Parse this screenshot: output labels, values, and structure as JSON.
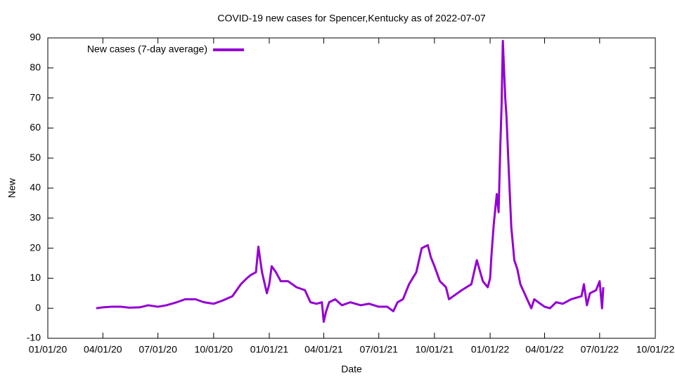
{
  "chart_data": {
    "type": "line",
    "title": "COVID-19 new cases for Spencer,Kentucky as of 2022-07-07",
    "x_label": "Date",
    "y_label": "New",
    "x": [
      "2020-03-21",
      "2020-04-01",
      "2020-04-15",
      "2020-05-01",
      "2020-05-15",
      "2020-06-01",
      "2020-06-15",
      "2020-07-01",
      "2020-07-15",
      "2020-08-01",
      "2020-08-15",
      "2020-09-01",
      "2020-09-15",
      "2020-10-01",
      "2020-10-15",
      "2020-11-01",
      "2020-11-15",
      "2020-11-25",
      "2020-12-01",
      "2020-12-10",
      "2020-12-14",
      "2020-12-20",
      "2020-12-28",
      "2021-01-01",
      "2021-01-05",
      "2021-01-12",
      "2021-01-20",
      "2021-02-01",
      "2021-02-15",
      "2021-03-01",
      "2021-03-10",
      "2021-03-20",
      "2021-03-29",
      "2021-04-01",
      "2021-04-05",
      "2021-04-10",
      "2021-04-20",
      "2021-05-01",
      "2021-05-15",
      "2021-06-01",
      "2021-06-15",
      "2021-07-01",
      "2021-07-15",
      "2021-07-25",
      "2021-08-01",
      "2021-08-10",
      "2021-08-20",
      "2021-09-01",
      "2021-09-10",
      "2021-09-20",
      "2021-09-25",
      "2021-10-01",
      "2021-10-10",
      "2021-10-20",
      "2021-10-25",
      "2021-11-01",
      "2021-11-15",
      "2021-12-01",
      "2021-12-10",
      "2021-12-20",
      "2021-12-28",
      "2022-01-01",
      "2022-01-03",
      "2022-01-07",
      "2022-01-12",
      "2022-01-15",
      "2022-01-18",
      "2022-01-20",
      "2022-01-22",
      "2022-01-26",
      "2022-01-28",
      "2022-02-01",
      "2022-02-05",
      "2022-02-10",
      "2022-02-15",
      "2022-02-20",
      "2022-03-01",
      "2022-03-10",
      "2022-03-15",
      "2022-03-25",
      "2022-04-01",
      "2022-04-10",
      "2022-04-20",
      "2022-05-01",
      "2022-05-15",
      "2022-06-01",
      "2022-06-05",
      "2022-06-10",
      "2022-06-15",
      "2022-06-25",
      "2022-07-01",
      "2022-07-05",
      "2022-07-07"
    ],
    "series": [
      {
        "name": "New cases (7-day average)",
        "color": "#9400d3",
        "values": [
          0,
          0.3,
          0.5,
          0.5,
          0.2,
          0.3,
          1,
          0.5,
          1,
          2,
          3,
          3,
          2,
          1.5,
          2.5,
          4,
          8,
          10,
          11,
          12,
          20.5,
          12,
          5,
          8,
          14,
          12,
          9,
          9,
          7,
          6,
          2,
          1.5,
          2,
          -4.5,
          -1,
          2,
          3,
          1,
          2,
          1,
          1.5,
          0.5,
          0.5,
          -1,
          2,
          3,
          8,
          12,
          20,
          21,
          17,
          14,
          9,
          7,
          3,
          4,
          6,
          8,
          16,
          9,
          7,
          10,
          17,
          28,
          38,
          32,
          55,
          68,
          89,
          70,
          64,
          45,
          27,
          16,
          13,
          8,
          4,
          0,
          3,
          1.5,
          0.5,
          0,
          2,
          1.5,
          3,
          4,
          8,
          1,
          5,
          6,
          9,
          0,
          7
        ]
      }
    ],
    "xlim": [
      "2020-01-01",
      "2022-10-01"
    ],
    "xticks": [
      {
        "value": "2020-01-01",
        "label": "01/01/20"
      },
      {
        "value": "2020-04-01",
        "label": "04/01/20"
      },
      {
        "value": "2020-07-01",
        "label": "07/01/20"
      },
      {
        "value": "2020-10-01",
        "label": "10/01/20"
      },
      {
        "value": "2021-01-01",
        "label": "01/01/21"
      },
      {
        "value": "2021-04-01",
        "label": "04/01/21"
      },
      {
        "value": "2021-07-01",
        "label": "07/01/21"
      },
      {
        "value": "2021-10-01",
        "label": "10/01/21"
      },
      {
        "value": "2022-01-01",
        "label": "01/01/22"
      },
      {
        "value": "2022-04-01",
        "label": "04/01/22"
      },
      {
        "value": "2022-07-01",
        "label": "07/01/22"
      },
      {
        "value": "2022-10-01",
        "label": "10/01/22"
      }
    ],
    "ylim": [
      -10,
      90
    ],
    "yticks": [
      -10,
      0,
      10,
      20,
      30,
      40,
      50,
      60,
      70,
      80,
      90
    ],
    "legend": "top-left"
  }
}
